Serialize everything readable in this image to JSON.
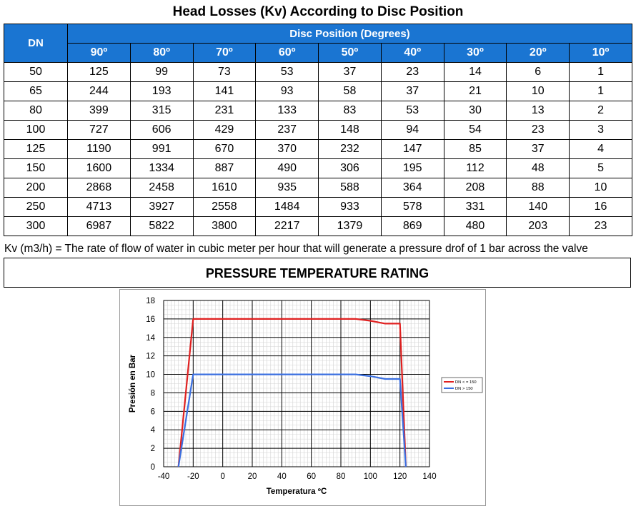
{
  "title": "Head Losses (Kv) According to Disc Position",
  "table": {
    "dn_header": "DN",
    "group_header": "Disc Position (Degrees)",
    "columns": [
      "90º",
      "80º",
      "70º",
      "60º",
      "50º",
      "40º",
      "30º",
      "20º",
      "10º"
    ],
    "rows": [
      {
        "dn": "50",
        "values": [
          "125",
          "99",
          "73",
          "53",
          "37",
          "23",
          "14",
          "6",
          "1"
        ]
      },
      {
        "dn": "65",
        "values": [
          "244",
          "193",
          "141",
          "93",
          "58",
          "37",
          "21",
          "10",
          "1"
        ]
      },
      {
        "dn": "80",
        "values": [
          "399",
          "315",
          "231",
          "133",
          "83",
          "53",
          "30",
          "13",
          "2"
        ]
      },
      {
        "dn": "100",
        "values": [
          "727",
          "606",
          "429",
          "237",
          "148",
          "94",
          "54",
          "23",
          "3"
        ]
      },
      {
        "dn": "125",
        "values": [
          "1190",
          "991",
          "670",
          "370",
          "232",
          "147",
          "85",
          "37",
          "4"
        ]
      },
      {
        "dn": "150",
        "values": [
          "1600",
          "1334",
          "887",
          "490",
          "306",
          "195",
          "112",
          "48",
          "5"
        ]
      },
      {
        "dn": "200",
        "values": [
          "2868",
          "2458",
          "1610",
          "935",
          "588",
          "364",
          "208",
          "88",
          "10"
        ]
      },
      {
        "dn": "250",
        "values": [
          "4713",
          "3927",
          "2558",
          "1484",
          "933",
          "578",
          "331",
          "140",
          "16"
        ]
      },
      {
        "dn": "300",
        "values": [
          "6987",
          "5822",
          "3800",
          "2217",
          "1379",
          "869",
          "480",
          "203",
          "23"
        ]
      }
    ]
  },
  "note": "Kv (m3/h) = The rate of flow of water in cubic meter per hour that will generate a pressure drof of 1 bar across the valve",
  "section_title": "PRESSURE TEMPERATURE RATING",
  "chart_data": {
    "type": "line",
    "title": "",
    "xlabel": "Temperatura ºC",
    "ylabel": "Presión en Bar",
    "xlim": [
      -40,
      140
    ],
    "ylim": [
      0,
      18
    ],
    "x_ticks": [
      "-40",
      "-20",
      "0",
      "20",
      "40",
      "60",
      "80",
      "100",
      "120",
      "140"
    ],
    "y_ticks": [
      "0",
      "2",
      "4",
      "6",
      "8",
      "10",
      "12",
      "14",
      "16",
      "18"
    ],
    "grid": true,
    "legend_position": "right",
    "series": [
      {
        "name": "DN < = 150",
        "color": "#e02020",
        "points": [
          [
            -30,
            0
          ],
          [
            -20,
            16
          ],
          [
            90,
            16
          ],
          [
            100,
            15.8
          ],
          [
            110,
            15.5
          ],
          [
            120,
            15.5
          ],
          [
            124,
            0
          ]
        ]
      },
      {
        "name": "DN > 150",
        "color": "#3a6fe0",
        "points": [
          [
            -30,
            0
          ],
          [
            -20,
            10
          ],
          [
            90,
            10
          ],
          [
            100,
            9.8
          ],
          [
            110,
            9.5
          ],
          [
            120,
            9.5
          ],
          [
            124,
            0
          ]
        ]
      }
    ]
  }
}
